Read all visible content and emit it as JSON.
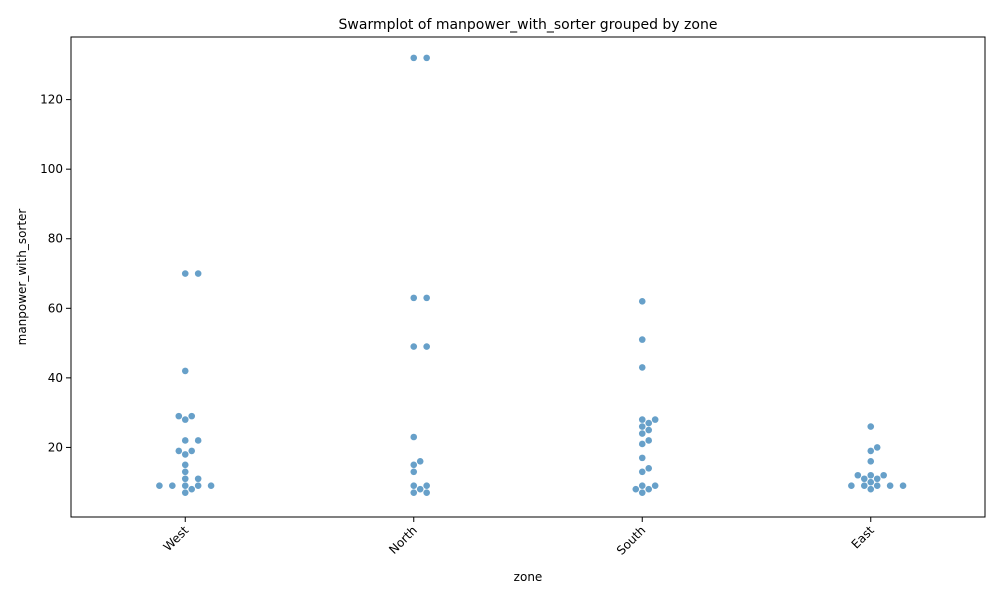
{
  "chart_data": {
    "type": "scatter",
    "subtype": "swarm",
    "title": "Swarmplot of manpower_with_sorter grouped by zone",
    "xlabel": "zone",
    "ylabel": "manpower_with_sorter",
    "categories": [
      "West",
      "North",
      "South",
      "East"
    ],
    "ylim": [
      0,
      138
    ],
    "yticks": [
      20,
      40,
      60,
      80,
      100,
      120
    ],
    "grid": false,
    "legend": "none",
    "point_color": "#4c8fbf",
    "values": {
      "West": [
        70,
        70,
        42,
        29,
        29,
        28,
        22,
        22,
        19,
        19,
        18,
        15,
        13,
        11,
        11,
        9,
        9,
        9,
        9,
        9,
        8,
        7
      ],
      "North": [
        132,
        132,
        63,
        63,
        49,
        49,
        23,
        16,
        15,
        13,
        9,
        9,
        8,
        7,
        7
      ],
      "South": [
        62,
        51,
        43,
        28,
        28,
        27,
        26,
        25,
        24,
        22,
        21,
        17,
        14,
        13,
        9,
        9,
        8,
        8,
        7
      ],
      "East": [
        26,
        20,
        19,
        16,
        12,
        12,
        12,
        11,
        11,
        10,
        9,
        9,
        9,
        9,
        9,
        8
      ]
    }
  }
}
